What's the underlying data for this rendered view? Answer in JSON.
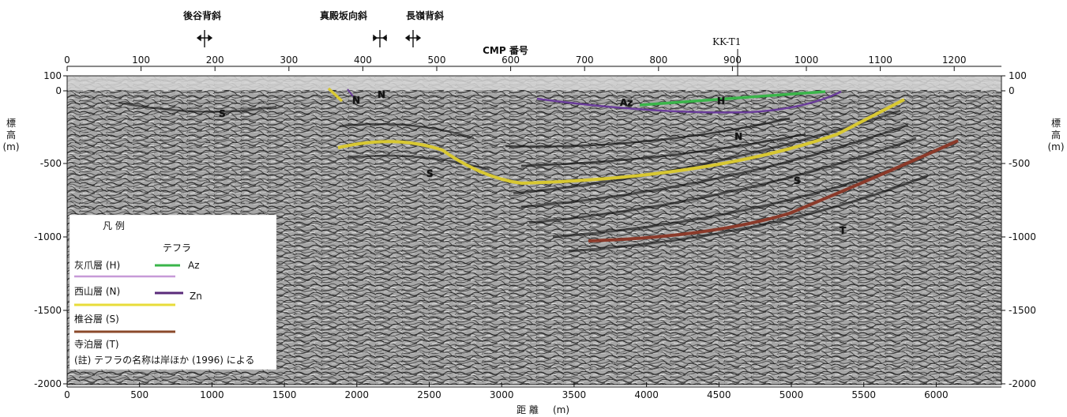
{
  "structures": [
    {
      "name": "後谷背斜",
      "kind": "anticline",
      "cmp": 190
    },
    {
      "name": "真殿坂向斜",
      "kind": "syncline",
      "cmp": 430
    },
    {
      "name": "長嶺背斜",
      "kind": "anticline",
      "cmp": 478
    }
  ],
  "top_axis": {
    "label": "CMP 番号",
    "ticks": [
      "0",
      "100",
      "200",
      "300",
      "400",
      "500",
      "600",
      "700",
      "800",
      "900",
      "1000",
      "1100",
      "1200"
    ]
  },
  "well": {
    "name": "KK-T1",
    "cmp": 924
  },
  "bottom_axis": {
    "label": "距 離",
    "unit": "(m)",
    "ticks": [
      "0",
      "500",
      "1000",
      "1500",
      "2000",
      "2500",
      "3000",
      "3500",
      "4000",
      "4500",
      "5000",
      "5500",
      "6000"
    ]
  },
  "elevation_axis": {
    "label_chars": [
      "標",
      "高"
    ],
    "unit": "(m)",
    "ticks_left": [
      "100",
      "0",
      "-500",
      "-1000",
      "-1500",
      "-2000"
    ],
    "ticks_right": [
      "100",
      "0",
      "-500",
      "-1000",
      "-1500",
      "-2000"
    ]
  },
  "unit_labels": [
    "S",
    "N",
    "N",
    "S",
    "Az",
    "H",
    "N",
    "S",
    "T"
  ],
  "legend": {
    "title": "凡 例",
    "tephra_header": "テフラ",
    "formations": [
      {
        "name": "灰爪層 (H)",
        "color": "#c79ad8"
      },
      {
        "name": "西山層 (N)",
        "color": "#e8dc3a"
      },
      {
        "name": "椎谷層 (S)",
        "color": "#8b4a2b"
      },
      {
        "name": "寺泊層 (T)",
        "color": ""
      }
    ],
    "tephra": [
      {
        "name": "Az",
        "color": "#3ab54a"
      },
      {
        "name": "Zn",
        "color": "#5a2a7a"
      }
    ],
    "note": "(註) テフラの名称は岸ほか (1996) による"
  },
  "colors": {
    "background": "#ffffff",
    "section_base": "#9a9a9a",
    "horizon_H": "#3ab54a",
    "horizon_Az": "#6a3d9a",
    "horizon_N_base": "#e8dc3a",
    "horizon_S_base": "#a0522d"
  }
}
